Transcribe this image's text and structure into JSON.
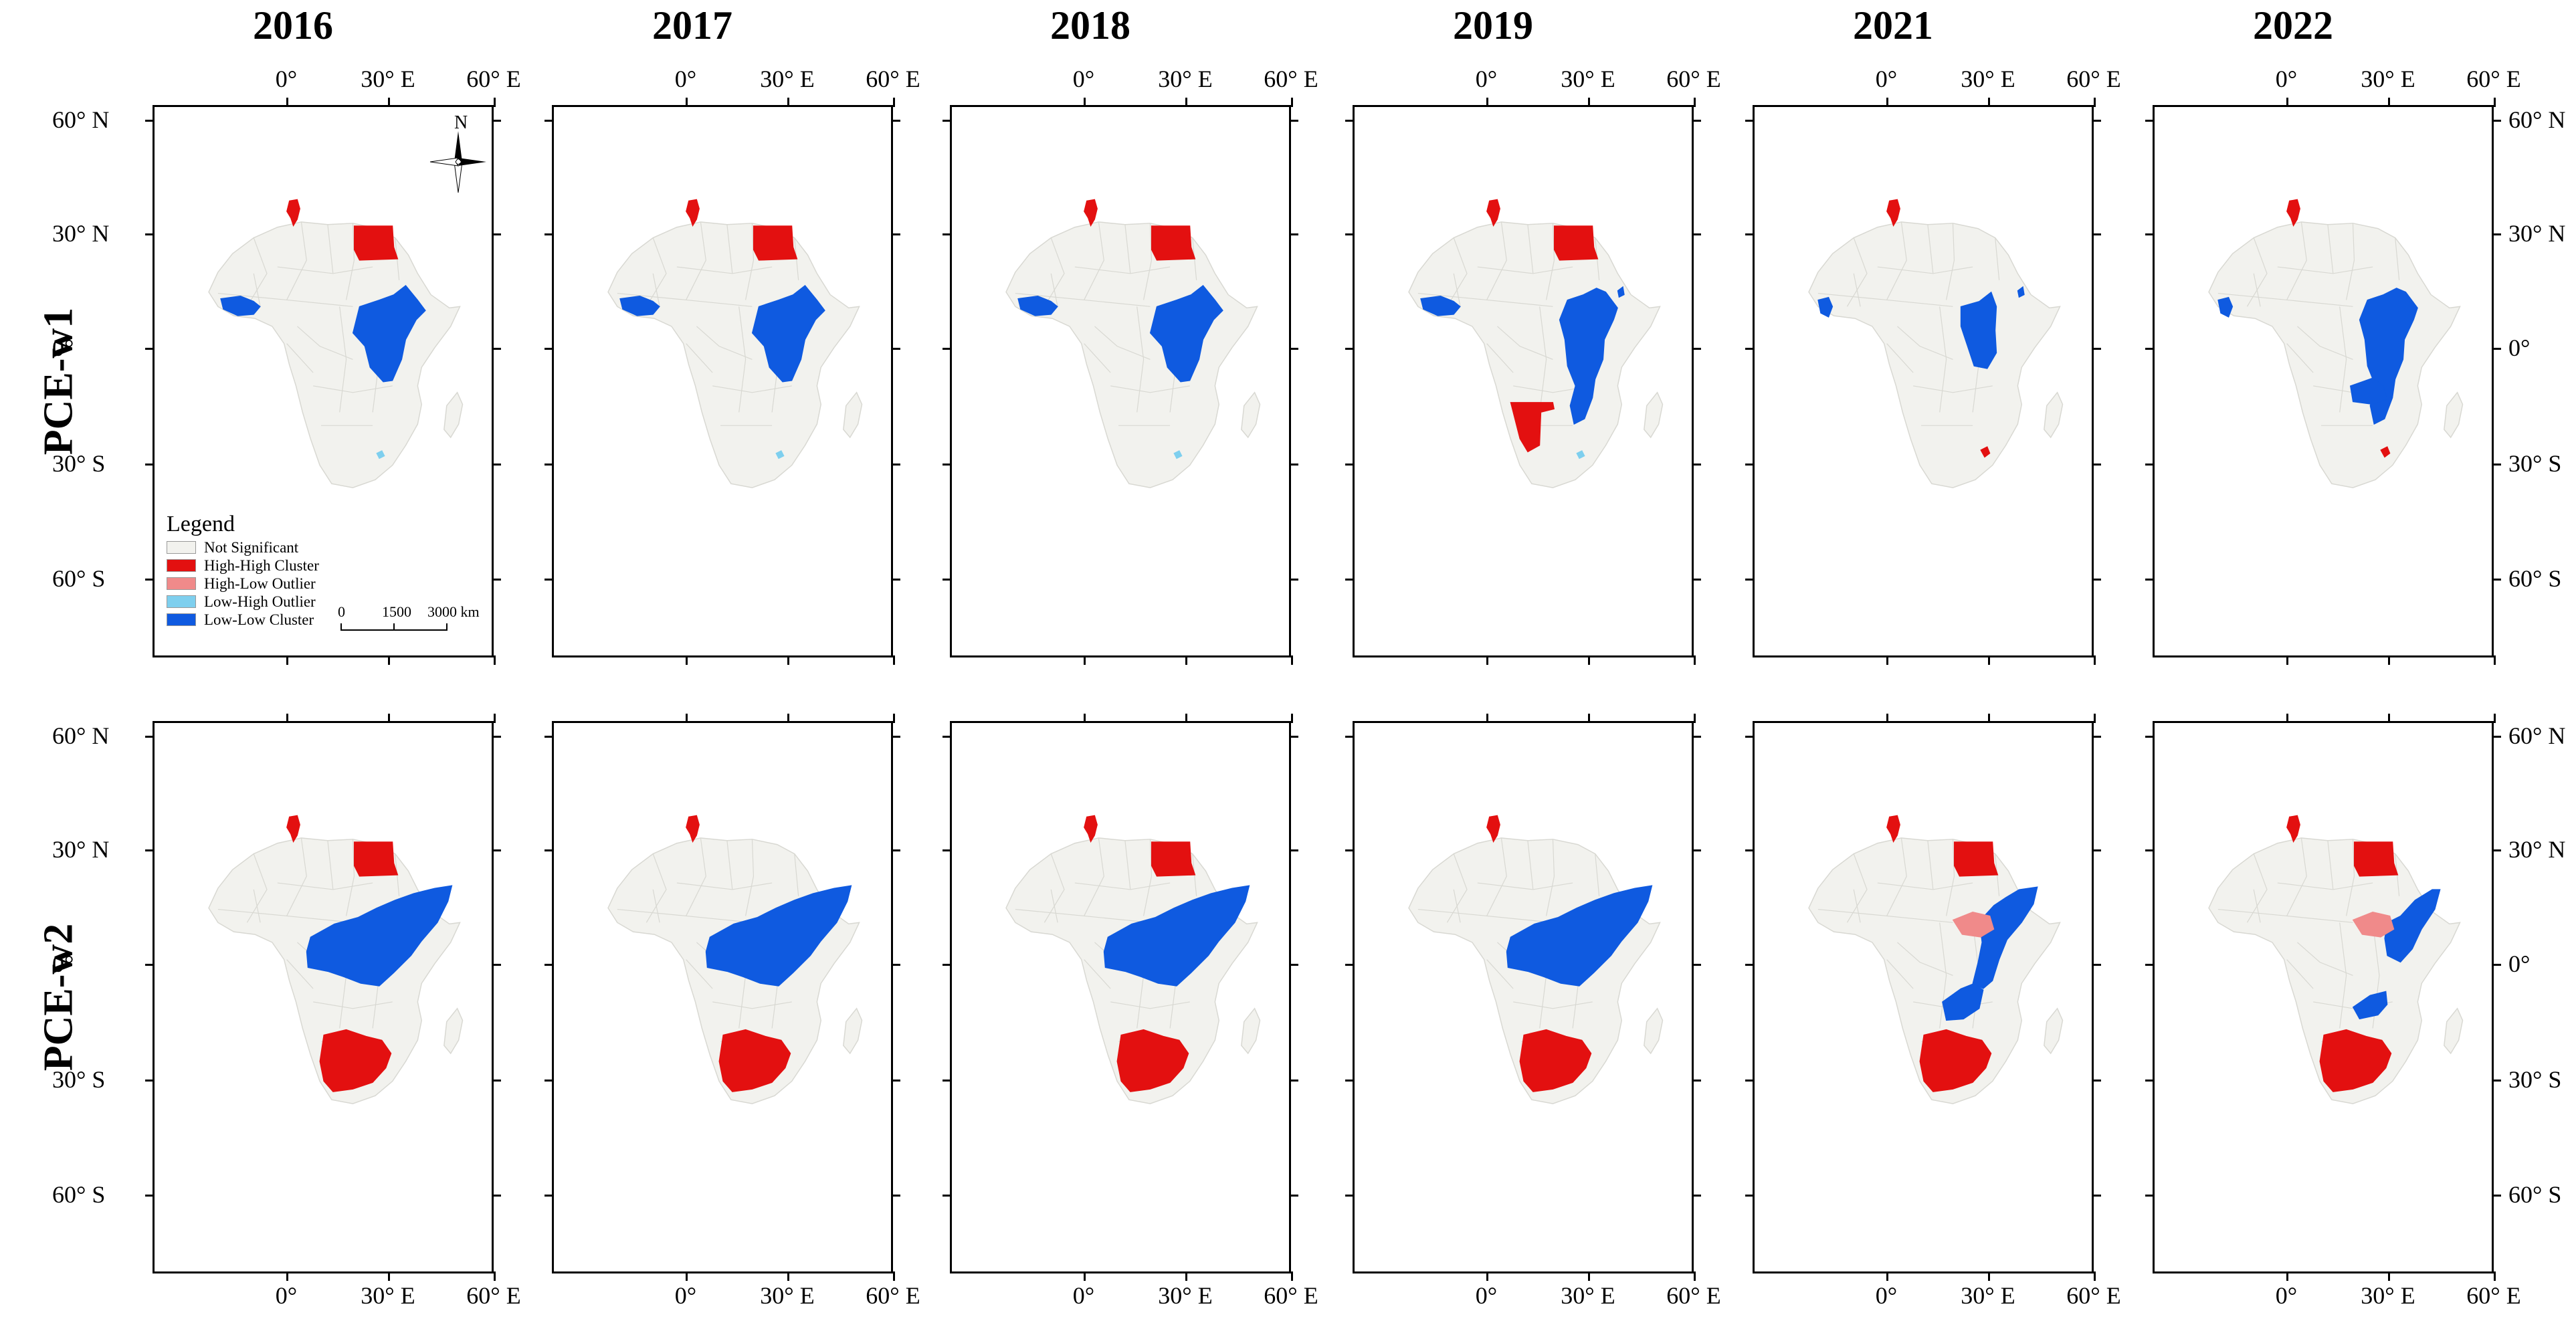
{
  "years": [
    "2016",
    "2017",
    "2018",
    "2019",
    "2021",
    "2022"
  ],
  "rows": [
    "PCE-w1",
    "PCE-w2"
  ],
  "lon_labels": [
    "0°",
    "30° E",
    "60° E"
  ],
  "lat_labels": [
    "60° N",
    "30° N",
    "0°",
    "30° S",
    "60° S"
  ],
  "north_label": "N",
  "legend": {
    "title": "Legend",
    "items": [
      {
        "label": "Not Significant",
        "color": "#f2f2ee"
      },
      {
        "label": "High-High Cluster",
        "color": "#e31010"
      },
      {
        "label": "High-Low Outlier",
        "color": "#f08a8a"
      },
      {
        "label": "Low-High Outlier",
        "color": "#7ecfee"
      },
      {
        "label": "Low-Low Cluster",
        "color": "#0f5ae0"
      }
    ]
  },
  "scale_bar": {
    "labels": [
      "0",
      "1500",
      "3000 km"
    ]
  },
  "colors": {
    "land": "#f2f2ee",
    "border": "#d8d8d2",
    "hh": "#e31010",
    "hl": "#f08a8a",
    "lh": "#7ecfee",
    "ll": "#0f5ae0"
  },
  "maps": [
    {
      "row": "PCE-w1",
      "year": "2016",
      "hh": [
        "tunisia",
        "egypt"
      ],
      "hl": [],
      "lh": [
        "lesotho"
      ],
      "ll": [
        "west-africa",
        "east-africa"
      ]
    },
    {
      "row": "PCE-w1",
      "year": "2017",
      "hh": [
        "tunisia",
        "egypt"
      ],
      "hl": [],
      "lh": [
        "lesotho"
      ],
      "ll": [
        "west-africa",
        "east-africa"
      ]
    },
    {
      "row": "PCE-w1",
      "year": "2018",
      "hh": [
        "tunisia",
        "egypt"
      ],
      "hl": [],
      "lh": [
        "lesotho"
      ],
      "ll": [
        "west-africa",
        "east-africa"
      ]
    },
    {
      "row": "PCE-w1",
      "year": "2019",
      "hh": [
        "tunisia",
        "egypt",
        "namibia"
      ],
      "hl": [],
      "lh": [
        "lesotho"
      ],
      "ll": [
        "west-africa",
        "east-africa-long",
        "djibouti"
      ]
    },
    {
      "row": "PCE-w1",
      "year": "2021",
      "hh": [
        "tunisia",
        "eswatini"
      ],
      "hl": [],
      "lh": [],
      "ll": [
        "guinea",
        "east-africa-small",
        "djibouti"
      ]
    },
    {
      "row": "PCE-w1",
      "year": "2022",
      "hh": [
        "tunisia",
        "eswatini"
      ],
      "hl": [],
      "lh": [],
      "ll": [
        "guinea",
        "east-africa-long",
        "zambia-mw"
      ]
    },
    {
      "row": "PCE-w2",
      "year": "2016",
      "hh": [
        "tunisia",
        "egypt",
        "south-africa"
      ],
      "hl": [],
      "lh": [],
      "ll": [
        "central-east"
      ]
    },
    {
      "row": "PCE-w2",
      "year": "2017",
      "hh": [
        "tunisia",
        "south-africa"
      ],
      "hl": [],
      "lh": [],
      "ll": [
        "central-east"
      ]
    },
    {
      "row": "PCE-w2",
      "year": "2018",
      "hh": [
        "tunisia",
        "egypt",
        "south-africa"
      ],
      "hl": [],
      "lh": [],
      "ll": [
        "central-east"
      ]
    },
    {
      "row": "PCE-w2",
      "year": "2019",
      "hh": [
        "tunisia",
        "south-africa"
      ],
      "hl": [],
      "lh": [],
      "ll": [
        "central-east"
      ]
    },
    {
      "row": "PCE-w2",
      "year": "2021",
      "hh": [
        "tunisia",
        "egypt",
        "south-africa"
      ],
      "hl": [
        "south-sudan"
      ],
      "lh": [],
      "ll": [
        "horn-east",
        "moz-zam"
      ]
    },
    {
      "row": "PCE-w2",
      "year": "2022",
      "hh": [
        "tunisia",
        "egypt",
        "south-africa"
      ],
      "hl": [
        "south-sudan"
      ],
      "lh": [],
      "ll": [
        "horn-east-small",
        "moz-small"
      ]
    }
  ]
}
